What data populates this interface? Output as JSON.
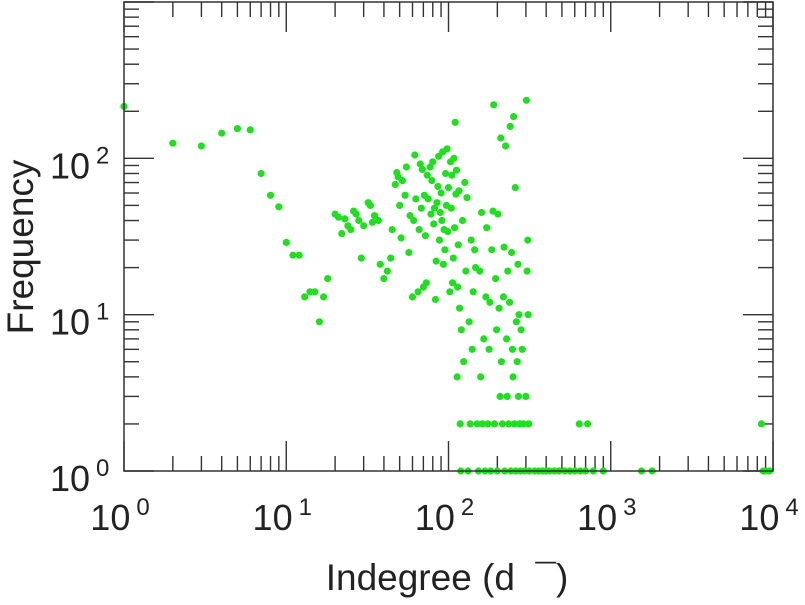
{
  "chart_data": {
    "type": "scatter",
    "title": "",
    "xlabel": "Indegree (d  ¯)",
    "ylabel": "Frequency",
    "xscale": "log",
    "yscale": "log",
    "xlim": [
      1,
      10000
    ],
    "ylim": [
      1,
      1000
    ],
    "x_ticks": [
      {
        "base": "10",
        "exp": "0"
      },
      {
        "base": "10",
        "exp": "1"
      },
      {
        "base": "10",
        "exp": "2"
      },
      {
        "base": "10",
        "exp": "3"
      },
      {
        "base": "10",
        "exp": "4"
      }
    ],
    "y_ticks": [
      {
        "base": "10",
        "exp": "0"
      },
      {
        "base": "10",
        "exp": "1"
      },
      {
        "base": "10",
        "exp": "2"
      }
    ],
    "grid": false,
    "legend": "none",
    "marker_color": "#1ee01e",
    "points": [
      [
        1,
        215
      ],
      [
        2,
        125
      ],
      [
        3,
        120
      ],
      [
        4,
        145
      ],
      [
        5,
        155
      ],
      [
        6,
        152
      ],
      [
        7,
        80
      ],
      [
        8,
        58
      ],
      [
        9,
        49
      ],
      [
        10,
        29
      ],
      [
        11,
        24
      ],
      [
        12,
        24
      ],
      [
        13,
        13
      ],
      [
        14,
        14
      ],
      [
        15,
        14
      ],
      [
        16,
        9
      ],
      [
        17,
        13
      ],
      [
        18,
        17
      ],
      [
        20,
        44
      ],
      [
        21,
        42
      ],
      [
        22,
        33
      ],
      [
        23,
        41
      ],
      [
        24,
        37
      ],
      [
        25,
        35
      ],
      [
        26,
        46
      ],
      [
        27,
        44
      ],
      [
        28,
        40
      ],
      [
        29,
        23
      ],
      [
        30,
        37
      ],
      [
        32,
        52
      ],
      [
        33,
        50
      ],
      [
        34,
        39
      ],
      [
        35,
        43
      ],
      [
        37,
        40
      ],
      [
        38,
        21
      ],
      [
        40,
        17
      ],
      [
        42,
        19
      ],
      [
        44,
        23
      ],
      [
        45,
        35
      ],
      [
        47,
        68
      ],
      [
        48,
        81
      ],
      [
        49,
        76
      ],
      [
        50,
        50
      ],
      [
        51,
        31
      ],
      [
        52,
        72
      ],
      [
        54,
        58
      ],
      [
        55,
        88
      ],
      [
        57,
        25
      ],
      [
        58,
        43
      ],
      [
        60,
        13
      ],
      [
        61,
        40
      ],
      [
        62,
        105
      ],
      [
        63,
        55
      ],
      [
        65,
        14
      ],
      [
        66,
        35
      ],
      [
        67,
        92
      ],
      [
        68,
        48
      ],
      [
        69,
        85
      ],
      [
        70,
        15
      ],
      [
        71,
        58
      ],
      [
        72,
        32
      ],
      [
        73,
        16
      ],
      [
        74,
        78
      ],
      [
        75,
        55
      ],
      [
        77,
        88
      ],
      [
        78,
        44
      ],
      [
        79,
        72
      ],
      [
        80,
        95
      ],
      [
        81,
        38
      ],
      [
        82,
        48
      ],
      [
        83,
        12.5
      ],
      [
        84,
        22
      ],
      [
        85,
        52
      ],
      [
        86,
        66
      ],
      [
        87,
        103
      ],
      [
        88,
        30
      ],
      [
        89,
        45
      ],
      [
        90,
        60
      ],
      [
        91,
        40
      ],
      [
        92,
        110
      ],
      [
        93,
        21
      ],
      [
        94,
        35
      ],
      [
        95,
        26
      ],
      [
        96,
        80
      ],
      [
        97,
        50
      ],
      [
        98,
        115
      ],
      [
        99,
        34
      ],
      [
        100,
        65
      ],
      [
        102,
        14
      ],
      [
        103,
        95
      ],
      [
        104,
        48
      ],
      [
        105,
        78
      ],
      [
        106,
        16
      ],
      [
        107,
        23
      ],
      [
        108,
        100
      ],
      [
        109,
        36
      ],
      [
        110,
        170
      ],
      [
        111,
        59
      ],
      [
        112,
        84
      ],
      [
        113,
        4
      ],
      [
        114,
        15
      ],
      [
        115,
        28
      ],
      [
        116,
        62
      ],
      [
        117,
        11
      ],
      [
        118,
        2
      ],
      [
        119,
        1
      ],
      [
        120,
        8
      ],
      [
        122,
        40
      ],
      [
        124,
        5
      ],
      [
        126,
        70
      ],
      [
        128,
        19
      ],
      [
        130,
        56
      ],
      [
        132,
        1
      ],
      [
        134,
        9
      ],
      [
        136,
        2
      ],
      [
        138,
        30
      ],
      [
        140,
        6
      ],
      [
        142,
        14
      ],
      [
        145,
        26
      ],
      [
        147,
        20
      ],
      [
        150,
        2
      ],
      [
        153,
        1
      ],
      [
        156,
        19
      ],
      [
        158,
        4
      ],
      [
        160,
        45
      ],
      [
        162,
        2
      ],
      [
        165,
        7
      ],
      [
        168,
        1
      ],
      [
        170,
        13
      ],
      [
        172,
        36
      ],
      [
        175,
        2
      ],
      [
        178,
        6
      ],
      [
        180,
        12
      ],
      [
        182,
        1
      ],
      [
        185,
        26
      ],
      [
        188,
        46
      ],
      [
        190,
        220
      ],
      [
        192,
        2
      ],
      [
        195,
        17
      ],
      [
        198,
        8
      ],
      [
        200,
        1
      ],
      [
        202,
        44
      ],
      [
        205,
        11
      ],
      [
        208,
        3
      ],
      [
        210,
        135
      ],
      [
        212,
        5
      ],
      [
        215,
        2
      ],
      [
        218,
        13
      ],
      [
        220,
        27
      ],
      [
        222,
        1
      ],
      [
        225,
        120
      ],
      [
        228,
        7
      ],
      [
        230,
        3
      ],
      [
        232,
        19
      ],
      [
        235,
        2
      ],
      [
        238,
        12
      ],
      [
        240,
        160
      ],
      [
        242,
        1
      ],
      [
        245,
        25
      ],
      [
        248,
        6
      ],
      [
        250,
        4
      ],
      [
        252,
        185
      ],
      [
        255,
        2
      ],
      [
        258,
        65
      ],
      [
        260,
        1
      ],
      [
        262,
        9
      ],
      [
        265,
        5
      ],
      [
        268,
        21
      ],
      [
        270,
        3
      ],
      [
        272,
        10
      ],
      [
        275,
        2
      ],
      [
        278,
        1
      ],
      [
        280,
        8
      ],
      [
        285,
        6
      ],
      [
        290,
        2
      ],
      [
        295,
        1
      ],
      [
        300,
        3
      ],
      [
        302,
        235
      ],
      [
        305,
        19
      ],
      [
        308,
        30
      ],
      [
        310,
        10
      ],
      [
        312,
        2
      ],
      [
        315,
        1
      ],
      [
        340,
        1
      ],
      [
        360,
        1
      ],
      [
        380,
        1
      ],
      [
        400,
        1
      ],
      [
        420,
        1
      ],
      [
        450,
        1
      ],
      [
        480,
        1
      ],
      [
        520,
        1
      ],
      [
        560,
        1
      ],
      [
        600,
        1
      ],
      [
        640,
        2
      ],
      [
        650,
        1
      ],
      [
        700,
        1
      ],
      [
        720,
        2
      ],
      [
        780,
        1
      ],
      [
        900,
        1
      ],
      [
        1550,
        1
      ],
      [
        1800,
        1
      ],
      [
        8500,
        2
      ],
      [
        8700,
        1
      ],
      [
        9000,
        1
      ],
      [
        9500,
        1
      ]
    ]
  }
}
